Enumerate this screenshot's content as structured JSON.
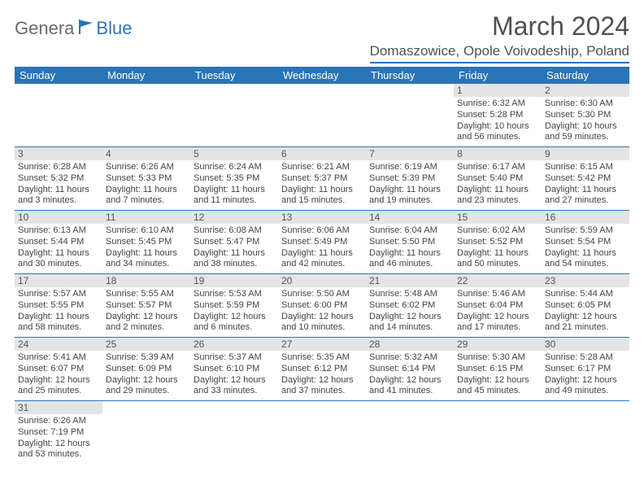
{
  "logo": {
    "part1": "Genera",
    "part2": "Blue",
    "flag_color": "#2a74b8"
  },
  "title": "March 2024",
  "location": "Domaszowice, Opole Voivodeship, Poland",
  "day_headers": [
    "Sunday",
    "Monday",
    "Tuesday",
    "Wednesday",
    "Thursday",
    "Friday",
    "Saturday"
  ],
  "weeks": [
    [
      null,
      null,
      null,
      null,
      null,
      {
        "n": "1",
        "sr": "Sunrise: 6:32 AM",
        "ss": "Sunset: 5:28 PM",
        "dl1": "Daylight: 10 hours",
        "dl2": "and 56 minutes."
      },
      {
        "n": "2",
        "sr": "Sunrise: 6:30 AM",
        "ss": "Sunset: 5:30 PM",
        "dl1": "Daylight: 10 hours",
        "dl2": "and 59 minutes."
      }
    ],
    [
      {
        "n": "3",
        "sr": "Sunrise: 6:28 AM",
        "ss": "Sunset: 5:32 PM",
        "dl1": "Daylight: 11 hours",
        "dl2": "and 3 minutes."
      },
      {
        "n": "4",
        "sr": "Sunrise: 6:26 AM",
        "ss": "Sunset: 5:33 PM",
        "dl1": "Daylight: 11 hours",
        "dl2": "and 7 minutes."
      },
      {
        "n": "5",
        "sr": "Sunrise: 6:24 AM",
        "ss": "Sunset: 5:35 PM",
        "dl1": "Daylight: 11 hours",
        "dl2": "and 11 minutes."
      },
      {
        "n": "6",
        "sr": "Sunrise: 6:21 AM",
        "ss": "Sunset: 5:37 PM",
        "dl1": "Daylight: 11 hours",
        "dl2": "and 15 minutes."
      },
      {
        "n": "7",
        "sr": "Sunrise: 6:19 AM",
        "ss": "Sunset: 5:39 PM",
        "dl1": "Daylight: 11 hours",
        "dl2": "and 19 minutes."
      },
      {
        "n": "8",
        "sr": "Sunrise: 6:17 AM",
        "ss": "Sunset: 5:40 PM",
        "dl1": "Daylight: 11 hours",
        "dl2": "and 23 minutes."
      },
      {
        "n": "9",
        "sr": "Sunrise: 6:15 AM",
        "ss": "Sunset: 5:42 PM",
        "dl1": "Daylight: 11 hours",
        "dl2": "and 27 minutes."
      }
    ],
    [
      {
        "n": "10",
        "sr": "Sunrise: 6:13 AM",
        "ss": "Sunset: 5:44 PM",
        "dl1": "Daylight: 11 hours",
        "dl2": "and 30 minutes."
      },
      {
        "n": "11",
        "sr": "Sunrise: 6:10 AM",
        "ss": "Sunset: 5:45 PM",
        "dl1": "Daylight: 11 hours",
        "dl2": "and 34 minutes."
      },
      {
        "n": "12",
        "sr": "Sunrise: 6:08 AM",
        "ss": "Sunset: 5:47 PM",
        "dl1": "Daylight: 11 hours",
        "dl2": "and 38 minutes."
      },
      {
        "n": "13",
        "sr": "Sunrise: 6:06 AM",
        "ss": "Sunset: 5:49 PM",
        "dl1": "Daylight: 11 hours",
        "dl2": "and 42 minutes."
      },
      {
        "n": "14",
        "sr": "Sunrise: 6:04 AM",
        "ss": "Sunset: 5:50 PM",
        "dl1": "Daylight: 11 hours",
        "dl2": "and 46 minutes."
      },
      {
        "n": "15",
        "sr": "Sunrise: 6:02 AM",
        "ss": "Sunset: 5:52 PM",
        "dl1": "Daylight: 11 hours",
        "dl2": "and 50 minutes."
      },
      {
        "n": "16",
        "sr": "Sunrise: 5:59 AM",
        "ss": "Sunset: 5:54 PM",
        "dl1": "Daylight: 11 hours",
        "dl2": "and 54 minutes."
      }
    ],
    [
      {
        "n": "17",
        "sr": "Sunrise: 5:57 AM",
        "ss": "Sunset: 5:55 PM",
        "dl1": "Daylight: 11 hours",
        "dl2": "and 58 minutes."
      },
      {
        "n": "18",
        "sr": "Sunrise: 5:55 AM",
        "ss": "Sunset: 5:57 PM",
        "dl1": "Daylight: 12 hours",
        "dl2": "and 2 minutes."
      },
      {
        "n": "19",
        "sr": "Sunrise: 5:53 AM",
        "ss": "Sunset: 5:59 PM",
        "dl1": "Daylight: 12 hours",
        "dl2": "and 6 minutes."
      },
      {
        "n": "20",
        "sr": "Sunrise: 5:50 AM",
        "ss": "Sunset: 6:00 PM",
        "dl1": "Daylight: 12 hours",
        "dl2": "and 10 minutes."
      },
      {
        "n": "21",
        "sr": "Sunrise: 5:48 AM",
        "ss": "Sunset: 6:02 PM",
        "dl1": "Daylight: 12 hours",
        "dl2": "and 14 minutes."
      },
      {
        "n": "22",
        "sr": "Sunrise: 5:46 AM",
        "ss": "Sunset: 6:04 PM",
        "dl1": "Daylight: 12 hours",
        "dl2": "and 17 minutes."
      },
      {
        "n": "23",
        "sr": "Sunrise: 5:44 AM",
        "ss": "Sunset: 6:05 PM",
        "dl1": "Daylight: 12 hours",
        "dl2": "and 21 minutes."
      }
    ],
    [
      {
        "n": "24",
        "sr": "Sunrise: 5:41 AM",
        "ss": "Sunset: 6:07 PM",
        "dl1": "Daylight: 12 hours",
        "dl2": "and 25 minutes."
      },
      {
        "n": "25",
        "sr": "Sunrise: 5:39 AM",
        "ss": "Sunset: 6:09 PM",
        "dl1": "Daylight: 12 hours",
        "dl2": "and 29 minutes."
      },
      {
        "n": "26",
        "sr": "Sunrise: 5:37 AM",
        "ss": "Sunset: 6:10 PM",
        "dl1": "Daylight: 12 hours",
        "dl2": "and 33 minutes."
      },
      {
        "n": "27",
        "sr": "Sunrise: 5:35 AM",
        "ss": "Sunset: 6:12 PM",
        "dl1": "Daylight: 12 hours",
        "dl2": "and 37 minutes."
      },
      {
        "n": "28",
        "sr": "Sunrise: 5:32 AM",
        "ss": "Sunset: 6:14 PM",
        "dl1": "Daylight: 12 hours",
        "dl2": "and 41 minutes."
      },
      {
        "n": "29",
        "sr": "Sunrise: 5:30 AM",
        "ss": "Sunset: 6:15 PM",
        "dl1": "Daylight: 12 hours",
        "dl2": "and 45 minutes."
      },
      {
        "n": "30",
        "sr": "Sunrise: 5:28 AM",
        "ss": "Sunset: 6:17 PM",
        "dl1": "Daylight: 12 hours",
        "dl2": "and 49 minutes."
      }
    ],
    [
      {
        "n": "31",
        "sr": "Sunrise: 6:26 AM",
        "ss": "Sunset: 7:19 PM",
        "dl1": "Daylight: 12 hours",
        "dl2": "and 53 minutes."
      },
      null,
      null,
      null,
      null,
      null,
      null
    ]
  ],
  "colors": {
    "header_bg": "#2a74b8",
    "header_text": "#ffffff",
    "daybar_bg": "#e4e4e4",
    "rule": "#2a74b8",
    "body_text": "#444444",
    "title_text": "#505050"
  },
  "fonts": {
    "title_pt": 32,
    "location_pt": 17,
    "header_pt": 13,
    "cell_pt": 11,
    "daynum_pt": 12
  }
}
